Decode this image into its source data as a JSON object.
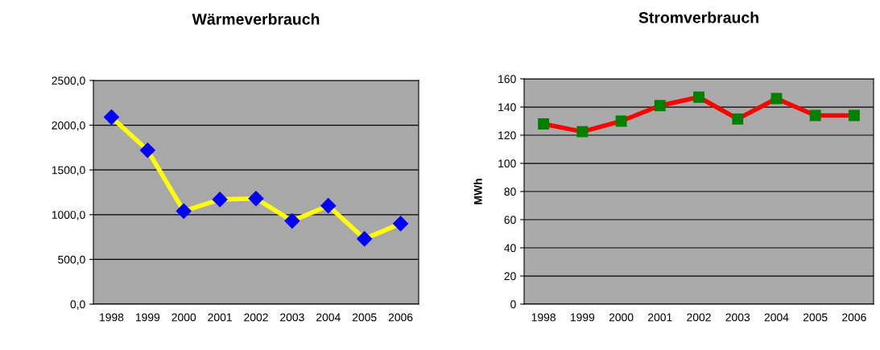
{
  "chart_data": [
    {
      "type": "line",
      "title": "Wärmeverbrauch",
      "categories": [
        "1998",
        "1999",
        "2000",
        "2001",
        "2002",
        "2003",
        "2004",
        "2005",
        "2006"
      ],
      "series": [
        {
          "color": "#ffff00",
          "values": [
            2090,
            1720,
            1040,
            1170,
            1180,
            930,
            1100,
            730,
            900
          ]
        }
      ],
      "marker": "diamond",
      "line_style": "solid",
      "grid": "y",
      "ylim": [
        0,
        2500
      ],
      "yticks": [
        {
          "value": 0,
          "label": "0,0"
        },
        {
          "value": 500,
          "label": "500,0"
        },
        {
          "value": 1000,
          "label": "1000,0"
        },
        {
          "value": 1500,
          "label": "1500,0"
        },
        {
          "value": 2000,
          "label": "2000,0"
        },
        {
          "value": 2500,
          "label": "2500,0"
        }
      ]
    },
    {
      "type": "line",
      "title": "Stromverbrauch",
      "ylabel": "MWh",
      "categories": [
        "1998",
        "1999",
        "2000",
        "2001",
        "2002",
        "2003",
        "2004",
        "2005",
        "2006"
      ],
      "series": [
        {
          "color": "#ff0000",
          "values": [
            128,
            122.5,
            130,
            141,
            147,
            131.5,
            146,
            134,
            134
          ]
        }
      ],
      "marker": "square",
      "line_style": "solid",
      "grid": "y",
      "ylim": [
        0,
        160
      ],
      "yticks": [
        0,
        20,
        40,
        60,
        80,
        100,
        120,
        140,
        160
      ]
    }
  ]
}
